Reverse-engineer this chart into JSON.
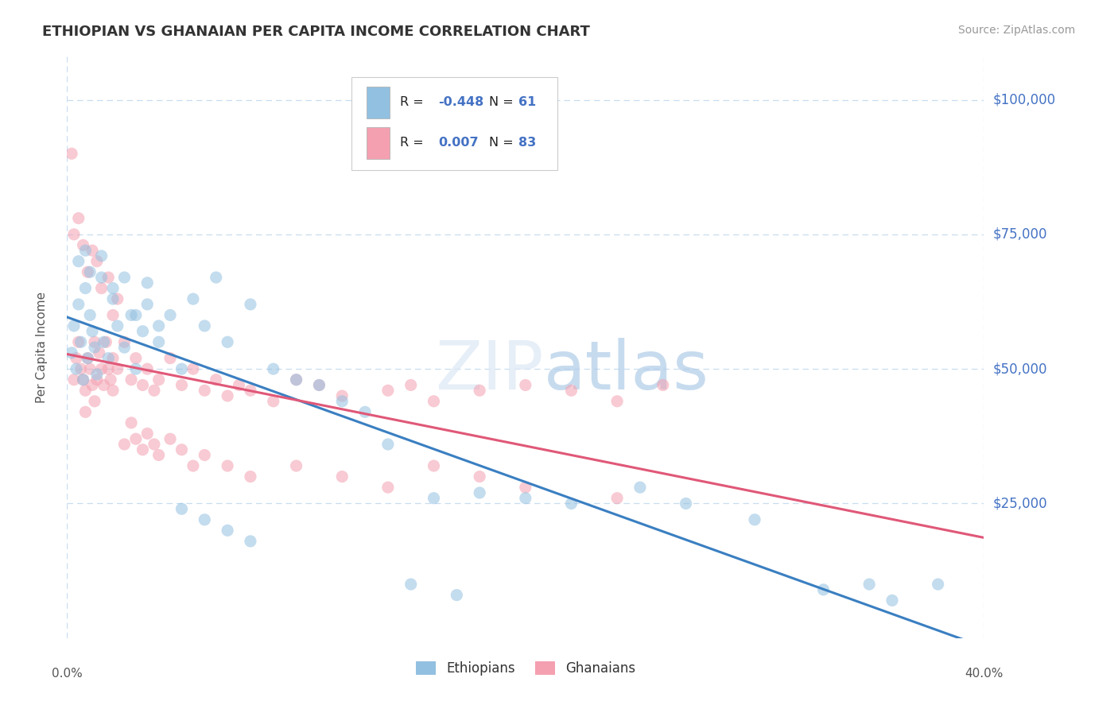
{
  "title": "ETHIOPIAN VS GHANAIAN PER CAPITA INCOME CORRELATION CHART",
  "source_text": "Source: ZipAtlas.com",
  "ylabel": "Per Capita Income",
  "xmin": 0.0,
  "xmax": 0.4,
  "ymin": 0,
  "ymax": 108000,
  "yticks": [
    25000,
    50000,
    75000,
    100000
  ],
  "ytick_labels": [
    "$25,000",
    "$50,000",
    "$75,000",
    "$100,000"
  ],
  "blue_color": "#92c0e0",
  "pink_color": "#f4a0b0",
  "blue_line_color": "#3a7fc1",
  "pink_line_color": "#e05878",
  "watermark": "ZIPatlas",
  "blue_scatter_x": [
    0.002,
    0.003,
    0.004,
    0.005,
    0.006,
    0.007,
    0.008,
    0.009,
    0.01,
    0.011,
    0.012,
    0.013,
    0.015,
    0.016,
    0.018,
    0.02,
    0.022,
    0.025,
    0.028,
    0.03,
    0.033,
    0.035,
    0.04,
    0.045,
    0.05,
    0.055,
    0.06,
    0.065,
    0.07,
    0.08,
    0.09,
    0.1,
    0.11,
    0.12,
    0.13,
    0.14,
    0.16,
    0.18,
    0.2,
    0.22,
    0.25,
    0.27,
    0.3,
    0.35,
    0.38,
    0.005,
    0.008,
    0.01,
    0.015,
    0.02,
    0.025,
    0.03,
    0.035,
    0.04,
    0.05,
    0.06,
    0.07,
    0.08,
    0.15,
    0.17,
    0.33,
    0.36
  ],
  "blue_scatter_y": [
    53000,
    58000,
    50000,
    62000,
    55000,
    48000,
    65000,
    52000,
    60000,
    57000,
    54000,
    49000,
    67000,
    55000,
    52000,
    63000,
    58000,
    54000,
    60000,
    50000,
    57000,
    66000,
    55000,
    60000,
    50000,
    63000,
    58000,
    67000,
    55000,
    62000,
    50000,
    48000,
    47000,
    44000,
    42000,
    36000,
    26000,
    27000,
    26000,
    25000,
    28000,
    25000,
    22000,
    10000,
    10000,
    70000,
    72000,
    68000,
    71000,
    65000,
    67000,
    60000,
    62000,
    58000,
    24000,
    22000,
    20000,
    18000,
    10000,
    8000,
    9000,
    7000
  ],
  "pink_scatter_x": [
    0.002,
    0.003,
    0.004,
    0.005,
    0.006,
    0.007,
    0.008,
    0.009,
    0.01,
    0.011,
    0.012,
    0.013,
    0.014,
    0.015,
    0.016,
    0.017,
    0.018,
    0.019,
    0.02,
    0.022,
    0.025,
    0.028,
    0.03,
    0.033,
    0.035,
    0.038,
    0.04,
    0.045,
    0.05,
    0.055,
    0.06,
    0.065,
    0.07,
    0.075,
    0.08,
    0.09,
    0.1,
    0.11,
    0.12,
    0.14,
    0.15,
    0.16,
    0.18,
    0.2,
    0.22,
    0.24,
    0.26,
    0.003,
    0.005,
    0.007,
    0.009,
    0.011,
    0.013,
    0.015,
    0.018,
    0.02,
    0.022,
    0.025,
    0.028,
    0.03,
    0.033,
    0.035,
    0.038,
    0.04,
    0.045,
    0.05,
    0.055,
    0.06,
    0.07,
    0.08,
    0.1,
    0.12,
    0.14,
    0.16,
    0.18,
    0.2,
    0.24,
    0.008,
    0.012,
    0.02
  ],
  "pink_scatter_y": [
    90000,
    48000,
    52000,
    55000,
    50000,
    48000,
    46000,
    52000,
    50000,
    47000,
    55000,
    48000,
    53000,
    50000,
    47000,
    55000,
    50000,
    48000,
    52000,
    50000,
    55000,
    48000,
    52000,
    47000,
    50000,
    46000,
    48000,
    52000,
    47000,
    50000,
    46000,
    48000,
    45000,
    47000,
    46000,
    44000,
    48000,
    47000,
    45000,
    46000,
    47000,
    44000,
    46000,
    47000,
    46000,
    44000,
    47000,
    75000,
    78000,
    73000,
    68000,
    72000,
    70000,
    65000,
    67000,
    60000,
    63000,
    36000,
    40000,
    37000,
    35000,
    38000,
    36000,
    34000,
    37000,
    35000,
    32000,
    34000,
    32000,
    30000,
    32000,
    30000,
    28000,
    32000,
    30000,
    28000,
    26000,
    42000,
    44000,
    46000
  ]
}
